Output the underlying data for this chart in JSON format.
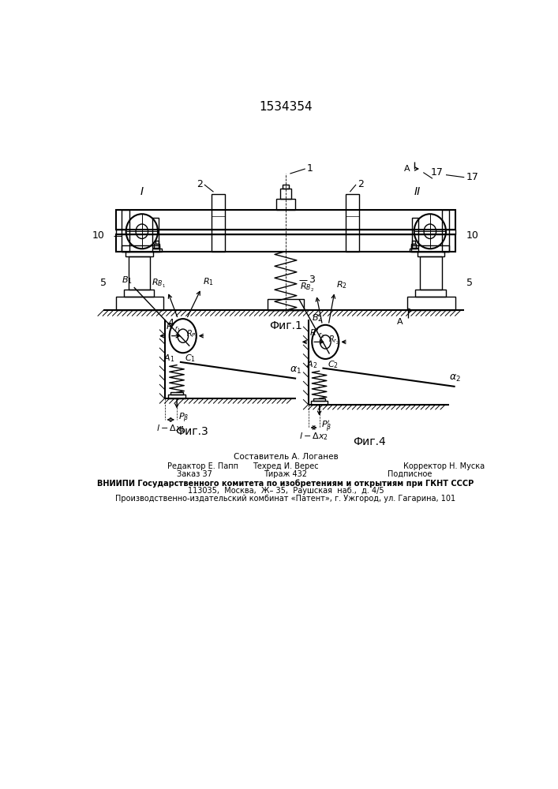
{
  "title": "1534354",
  "bg_color": "#ffffff",
  "fig1_label": "Фиг.1",
  "fig3_label": "Фиг.3",
  "fig4_label": "Фиг.4",
  "footer_line0": "Составитель А. Логанев",
  "footer_line1a": "Редактор Е. Папп",
  "footer_line1b": "Техред И. Верес",
  "footer_line1c": "Корректор Н. Муска",
  "footer_line2a": "Заказ 37",
  "footer_line2b": "Тираж 432",
  "footer_line2c": "Подписное",
  "footer_line3": "ВНИИПИ Государственного комитета по изобретениям и открытиям при ГКНТ СССР",
  "footer_line4": "113035,  Москва,  Ж– 35,  Раушская  наб.,  д. 4/5",
  "footer_line5": "Производственно-издательский комбинат «Патент», г. Ужгород, ул. Гагарина, 101"
}
